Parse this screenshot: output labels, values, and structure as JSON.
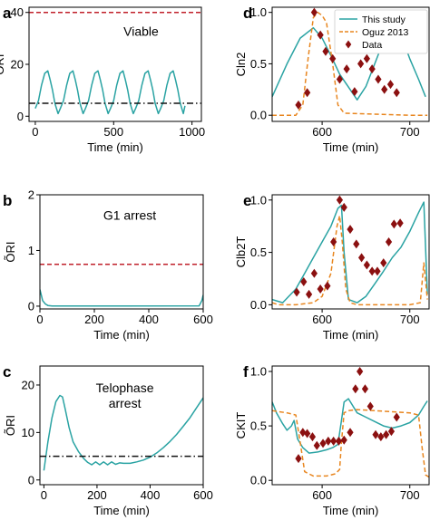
{
  "colors": {
    "model": "#2aa3a3",
    "oguz": "#e8861f",
    "data": "#8b1010",
    "threshold": "#c0202a",
    "ref": "#111111"
  },
  "chart_data": [
    {
      "panel": "a",
      "type": "line",
      "annotation": "Viable",
      "xlabel": "Time (min)",
      "ylabel": "ÕRI",
      "xlim": [
        -40,
        1060
      ],
      "ylim": [
        -2,
        42
      ],
      "xticks": [
        0,
        500,
        1000
      ],
      "yticks": [
        0,
        20,
        40
      ],
      "series": [
        {
          "style": "solid",
          "color": "#2aa3a3",
          "x": [
            0,
            20,
            40,
            60,
            80,
            95,
            110,
            125,
            145,
            160,
            180,
            200,
            220,
            240,
            255,
            270,
            285,
            305,
            320,
            340,
            360,
            380,
            400,
            415,
            430,
            445,
            465,
            480,
            500,
            520,
            540,
            560,
            575,
            590,
            605,
            625,
            640,
            660,
            680,
            700,
            720,
            735,
            750,
            765,
            785,
            800,
            820,
            840,
            860,
            880,
            895,
            910,
            925,
            945,
            955
          ],
          "y": [
            3,
            6,
            12,
            16.5,
            17.5,
            14,
            10,
            5,
            1,
            3,
            6,
            12,
            16.5,
            17.5,
            14,
            10,
            5,
            1,
            3,
            6,
            12,
            16.5,
            17.5,
            14,
            10,
            5,
            1,
            3,
            6,
            12,
            16.5,
            17.5,
            14,
            10,
            5,
            1,
            3,
            6,
            12,
            16.5,
            17.5,
            14,
            10,
            5,
            1,
            3,
            6,
            12,
            16.5,
            17.5,
            14,
            10,
            5,
            1,
            4
          ]
        },
        {
          "style": "dashed",
          "color": "#c0202a",
          "x": [
            -40,
            1060
          ],
          "y": [
            40,
            40
          ]
        },
        {
          "style": "dashdot",
          "color": "#111111",
          "x": [
            -40,
            1060
          ],
          "y": [
            5,
            5
          ]
        }
      ]
    },
    {
      "panel": "b",
      "type": "line",
      "annotation": "G1 arrest",
      "xlabel": "Time (min)",
      "ylabel": "ÕRI",
      "xlim": [
        0,
        600
      ],
      "ylim": [
        -0.05,
        2
      ],
      "xticks": [
        0,
        200,
        400,
        600
      ],
      "yticks": [
        0,
        1,
        2
      ],
      "series": [
        {
          "style": "solid",
          "color": "#2aa3a3",
          "x": [
            0,
            5,
            10,
            20,
            30,
            45,
            100,
            300,
            585,
            595,
            600
          ],
          "y": [
            0.3,
            0.2,
            0.1,
            0.04,
            0.01,
            0.003,
            0.003,
            0.003,
            0.005,
            0.1,
            0.2
          ]
        },
        {
          "style": "dashed",
          "color": "#c0202a",
          "x": [
            0,
            600
          ],
          "y": [
            0.75,
            0.75
          ]
        }
      ]
    },
    {
      "panel": "c",
      "type": "line",
      "annotation": [
        "Telophase",
        "arrest"
      ],
      "xlabel": "Time (min)",
      "ylabel": "ÕRI",
      "xlim": [
        -15,
        600
      ],
      "ylim": [
        -1,
        24
      ],
      "xticks": [
        0,
        200,
        400,
        600
      ],
      "yticks": [
        0,
        10,
        20
      ],
      "series": [
        {
          "style": "solid",
          "color": "#2aa3a3",
          "x": [
            0,
            15,
            30,
            45,
            60,
            70,
            80,
            95,
            110,
            130,
            150,
            165,
            180,
            195,
            210,
            225,
            240,
            255,
            270,
            285,
            300,
            325,
            350,
            375,
            400,
            425,
            450,
            475,
            500,
            525,
            550,
            575,
            600
          ],
          "y": [
            2,
            8,
            13,
            16.5,
            17.8,
            17.5,
            15,
            11,
            8,
            6,
            4.5,
            3.7,
            3.2,
            3.8,
            3.2,
            3.8,
            3.2,
            3.8,
            3.3,
            3.6,
            3.5,
            3.5,
            3.8,
            4.2,
            4.8,
            5.7,
            6.8,
            8.1,
            9.6,
            11.3,
            13.1,
            15.2,
            17.3
          ]
        },
        {
          "style": "dashdot",
          "color": "#111111",
          "x": [
            -15,
            600
          ],
          "y": [
            5,
            5
          ]
        }
      ]
    },
    {
      "panel": "d",
      "type": "line",
      "annotation": "",
      "xlabel": "Time (min)",
      "ylabel": "Cln2",
      "xlim": [
        543,
        722
      ],
      "ylim": [
        -0.06,
        1.05
      ],
      "xticks": [
        600,
        700
      ],
      "yticks": [
        0.0,
        0.5,
        1.0
      ],
      "legend": {
        "position": "top-right",
        "entries": [
          "This study",
          "Oguz 2013",
          "Data"
        ]
      },
      "series": [
        {
          "name": "This study",
          "style": "solid",
          "color": "#2aa3a3",
          "x": [
            543,
            560,
            575,
            590,
            600,
            610,
            620,
            640,
            650,
            660,
            670,
            680,
            690,
            700,
            710,
            718
          ],
          "y": [
            0.18,
            0.5,
            0.75,
            0.85,
            0.75,
            0.58,
            0.4,
            0.15,
            0.28,
            0.5,
            0.72,
            0.84,
            0.78,
            0.55,
            0.35,
            0.18
          ]
        },
        {
          "name": "Oguz 2013",
          "style": "dashed",
          "color": "#e8861f",
          "x": [
            543,
            570,
            578,
            584,
            590,
            595,
            600,
            605,
            612,
            618,
            625,
            700,
            720
          ],
          "y": [
            0.0,
            0.0,
            0.1,
            0.55,
            0.95,
            1.0,
            0.97,
            0.9,
            0.5,
            0.1,
            0.02,
            0.0,
            0.0
          ]
        },
        {
          "name": "Data",
          "type": "scatter",
          "marker": "diamond",
          "color": "#8b1010",
          "x": [
            573,
            583,
            591,
            598,
            604,
            612,
            620,
            628,
            637,
            644,
            651,
            657,
            664,
            671,
            678,
            685
          ],
          "y": [
            0.1,
            0.22,
            1.0,
            0.78,
            0.62,
            0.55,
            0.35,
            0.45,
            0.23,
            0.5,
            0.55,
            0.45,
            0.35,
            0.25,
            0.3,
            0.22
          ]
        }
      ]
    },
    {
      "panel": "e",
      "type": "line",
      "annotation": "",
      "xlabel": "Time (min)",
      "ylabel": "Clb2T",
      "xlim": [
        543,
        722
      ],
      "ylim": [
        -0.04,
        1.05
      ],
      "xticks": [
        600,
        700
      ],
      "yticks": [
        0.0,
        0.5,
        1.0
      ],
      "series": [
        {
          "name": "This study",
          "style": "solid",
          "color": "#2aa3a3",
          "x": [
            543,
            555,
            570,
            580,
            590,
            600,
            610,
            618,
            622,
            625,
            630,
            640,
            650,
            660,
            670,
            680,
            690,
            700,
            710,
            716,
            720
          ],
          "y": [
            0.05,
            0.02,
            0.15,
            0.3,
            0.45,
            0.6,
            0.75,
            0.92,
            0.95,
            0.5,
            0.05,
            0.02,
            0.08,
            0.2,
            0.32,
            0.45,
            0.55,
            0.7,
            0.88,
            0.98,
            0.1
          ]
        },
        {
          "name": "Oguz 2013",
          "style": "dashed",
          "color": "#e8861f",
          "x": [
            543,
            550,
            570,
            590,
            600,
            610,
            617,
            620,
            623,
            627,
            632,
            640,
            660,
            680,
            700,
            712,
            716,
            720
          ],
          "y": [
            0.02,
            0.0,
            0.0,
            0.02,
            0.08,
            0.3,
            0.75,
            0.85,
            0.6,
            0.15,
            0.02,
            0.0,
            0.0,
            0.0,
            0.0,
            0.02,
            0.4,
            0.05
          ]
        },
        {
          "name": "Data",
          "type": "scatter",
          "marker": "diamond",
          "color": "#8b1010",
          "x": [
            571,
            579,
            585,
            591,
            598,
            606,
            613,
            620,
            625,
            632,
            639,
            645,
            651,
            657,
            663,
            670,
            676,
            682,
            689
          ],
          "y": [
            0.12,
            0.22,
            0.1,
            0.3,
            0.15,
            0.18,
            0.6,
            1.0,
            0.93,
            0.72,
            0.58,
            0.45,
            0.38,
            0.32,
            0.32,
            0.4,
            0.6,
            0.77,
            0.78
          ]
        }
      ]
    },
    {
      "panel": "f",
      "type": "line",
      "annotation": "",
      "xlabel": "Time (min)",
      "ylabel": "CKIT",
      "xlim": [
        543,
        722
      ],
      "ylim": [
        -0.04,
        1.05
      ],
      "xticks": [
        600,
        700
      ],
      "yticks": [
        0.0,
        0.5,
        1.0
      ],
      "series": [
        {
          "name": "This study",
          "style": "solid",
          "color": "#2aa3a3",
          "x": [
            543,
            548,
            555,
            560,
            565,
            568,
            572,
            578,
            585,
            595,
            605,
            612,
            618,
            622,
            625,
            630,
            640,
            650,
            660,
            670,
            680,
            690,
            700,
            710,
            716,
            720
          ],
          "y": [
            0.72,
            0.62,
            0.52,
            0.46,
            0.5,
            0.55,
            0.38,
            0.3,
            0.25,
            0.26,
            0.28,
            0.3,
            0.33,
            0.55,
            0.72,
            0.75,
            0.62,
            0.58,
            0.54,
            0.5,
            0.48,
            0.5,
            0.53,
            0.6,
            0.68,
            0.73
          ]
        },
        {
          "name": "Oguz 2013",
          "style": "dashed",
          "color": "#e8861f",
          "x": [
            543,
            560,
            570,
            575,
            580,
            590,
            605,
            615,
            620,
            622,
            625,
            630,
            640,
            660,
            680,
            700,
            710,
            714,
            718,
            722
          ],
          "y": [
            0.64,
            0.62,
            0.6,
            0.35,
            0.08,
            0.04,
            0.04,
            0.06,
            0.1,
            0.35,
            0.62,
            0.64,
            0.65,
            0.64,
            0.63,
            0.62,
            0.6,
            0.3,
            0.05,
            0.03
          ]
        },
        {
          "name": "Data",
          "type": "scatter",
          "marker": "diamond",
          "color": "#8b1010",
          "x": [
            573,
            578,
            583,
            589,
            594,
            601,
            607,
            613,
            619,
            625,
            632,
            638,
            643,
            649,
            655,
            661,
            667,
            673,
            679,
            685
          ],
          "y": [
            0.2,
            0.44,
            0.43,
            0.4,
            0.32,
            0.34,
            0.36,
            0.36,
            0.36,
            0.37,
            0.44,
            0.84,
            1.0,
            0.84,
            0.68,
            0.42,
            0.4,
            0.42,
            0.45,
            0.58
          ]
        }
      ]
    }
  ]
}
